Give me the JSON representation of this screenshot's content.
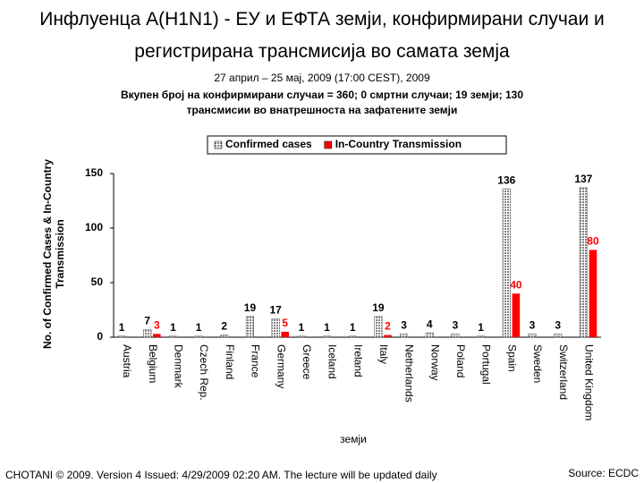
{
  "chart_data": {
    "type": "bar",
    "title": "Инфлуенца A(H1N1) - ЕУ и ЕФТА земји, конфирмирани случаи и регистрирана трансмисија во самата земја",
    "subtitle": "27 април – 25 мај, 2009 (17:00 CEST), 2009",
    "subtitle2": "Вкупен број на конфирмирани случаи = 360; 0 смртни случаи; 19 земји; 130 трансмисии во внатрешноста на зафатените земји",
    "x_label": "земји",
    "y_label": "No. of Confirmed Cases & In-Country Transmission",
    "categories": [
      "Austria",
      "Belgium",
      "Denmark",
      "Czech Rep.",
      "Finland",
      "France",
      "Germany",
      "Greece",
      "Iceland",
      "Ireland",
      "Italy",
      "Netherlands",
      "Norway",
      "Poland",
      "Portugal",
      "Spain",
      "Sweden",
      "Switzerland",
      "United Kingdom"
    ],
    "series": [
      {
        "name": "Confirmed cases",
        "color": "#808080",
        "values": [
          1,
          7,
          1,
          1,
          2,
          19,
          17,
          1,
          1,
          1,
          19,
          3,
          4,
          3,
          1,
          136,
          3,
          3,
          137
        ]
      },
      {
        "name": "In-Country Transmission",
        "color": "#ff0000",
        "values": [
          null,
          3,
          null,
          null,
          null,
          null,
          5,
          null,
          null,
          null,
          2,
          null,
          null,
          null,
          null,
          40,
          null,
          null,
          80
        ]
      }
    ],
    "ylim": [
      0,
      150
    ],
    "yticks": [
      0,
      50,
      100,
      150
    ],
    "grid": false,
    "legend": "top"
  },
  "footer": "CHOTANI © 2009. Version 4 Issued: 4/29/2009 02:20 AM. The lecture will be updated daily",
  "source": "Source: ECDC"
}
